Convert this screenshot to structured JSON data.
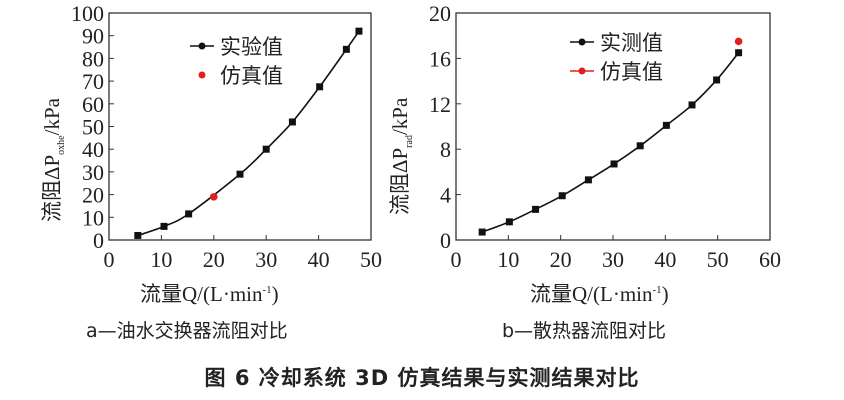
{
  "figure_title": "图 6   冷却系统 3D 仿真结果与实测结果对比",
  "chart_data": [
    {
      "type": "line",
      "caption": "a—油水交换器流阻对比",
      "ylabel": {
        "main": "流阻ΔP",
        "sub": "oxhe",
        "unit": "/kPa"
      },
      "xlabel": {
        "main": "流量Q/(L·min",
        "sup": "-1",
        "end": ")"
      },
      "xlim": [
        0,
        50
      ],
      "ylim": [
        0,
        100
      ],
      "xticks": [
        0,
        10,
        20,
        30,
        40,
        50
      ],
      "yticks": [
        0,
        10,
        20,
        30,
        40,
        50,
        60,
        70,
        80,
        90,
        100
      ],
      "grid": false,
      "legend_placement": "top-center",
      "series": [
        {
          "name": "实验值",
          "color": "#111111",
          "marker": "square",
          "line": true,
          "x": [
            5.5,
            10.5,
            15.2,
            25,
            30,
            35,
            40.2,
            45.3,
            47.7
          ],
          "y": [
            2,
            6,
            11.5,
            29,
            40,
            52,
            67.5,
            84,
            92
          ]
        },
        {
          "name": "仿真值",
          "color": "#e02020",
          "marker": "circle",
          "line": false,
          "x": [
            20
          ],
          "y": [
            19
          ]
        }
      ]
    },
    {
      "type": "line",
      "caption": "b—散热器流阻对比",
      "ylabel": {
        "main": "流阻ΔP",
        "sub": "rad",
        "unit": "/kPa"
      },
      "xlabel": {
        "main": "流量Q/(L·min",
        "sup": "-1",
        "end": ")"
      },
      "xlim": [
        0,
        60
      ],
      "ylim": [
        0,
        20
      ],
      "xticks": [
        0,
        10,
        20,
        30,
        40,
        50,
        60
      ],
      "yticks": [
        0,
        4,
        8,
        12,
        16,
        20
      ],
      "grid": false,
      "legend_placement": "top-center",
      "series": [
        {
          "name": "实测值",
          "color": "#111111",
          "marker": "square",
          "line": true,
          "x": [
            5,
            10.2,
            15.2,
            20.3,
            25.3,
            30.2,
            35.2,
            40.2,
            45.1,
            49.8,
            54
          ],
          "y": [
            0.7,
            1.6,
            2.7,
            3.9,
            5.3,
            6.7,
            8.3,
            10.1,
            11.9,
            14.1,
            16.5
          ]
        },
        {
          "name": "仿真值",
          "color": "#e02020",
          "marker": "circle",
          "line": false,
          "legend_line": true,
          "x": [
            54
          ],
          "y": [
            17.5
          ]
        }
      ]
    }
  ]
}
